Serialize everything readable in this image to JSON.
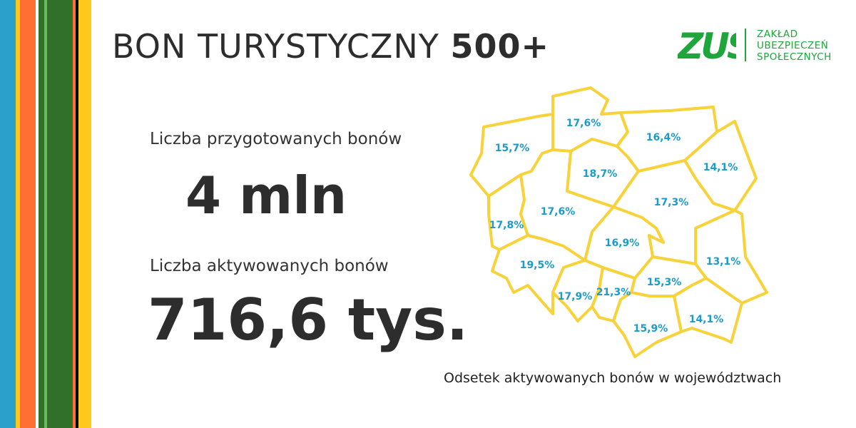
{
  "header": {
    "title_regular": "BON TURYSTYCZNY",
    "title_bold": "500+"
  },
  "logo": {
    "mark": "ZUS",
    "lines": [
      "ZAKŁAD",
      "UBEZPIECZEŃ",
      "SPOŁECZNYCH"
    ],
    "color": "#1ea53c"
  },
  "stats": {
    "prepared_label": "Liczba przygotowanych bonów",
    "prepared_value": "4 mln",
    "activated_label": "Liczba aktywowanych bonów",
    "activated_value": "716,6 tys."
  },
  "map": {
    "caption": "Odsetek aktywowanych bonów w województwach",
    "stroke_color": "#f7d23a",
    "label_color": "#1b9bc9",
    "regions": [
      {
        "label": "15,7%"
      },
      {
        "label": "17,6%"
      },
      {
        "label": "16,4%"
      },
      {
        "label": "14,1%"
      },
      {
        "label": "18,7%"
      },
      {
        "label": "17,8%"
      },
      {
        "label": "17,6%"
      },
      {
        "label": "17,3%"
      },
      {
        "label": "16,9%"
      },
      {
        "label": "13,1%"
      },
      {
        "label": "19,5%"
      },
      {
        "label": "17,9%"
      },
      {
        "label": "21,3%"
      },
      {
        "label": "15,3%"
      },
      {
        "label": "15,9%"
      },
      {
        "label": "14,1%"
      }
    ]
  },
  "stripes": [
    "#2ba0c8",
    "#ffc91c",
    "#ff6f33",
    "#ffffff",
    "#317029",
    "#6ab860",
    "#317029",
    "#ff6f33",
    "#000000",
    "#ffc91c"
  ]
}
